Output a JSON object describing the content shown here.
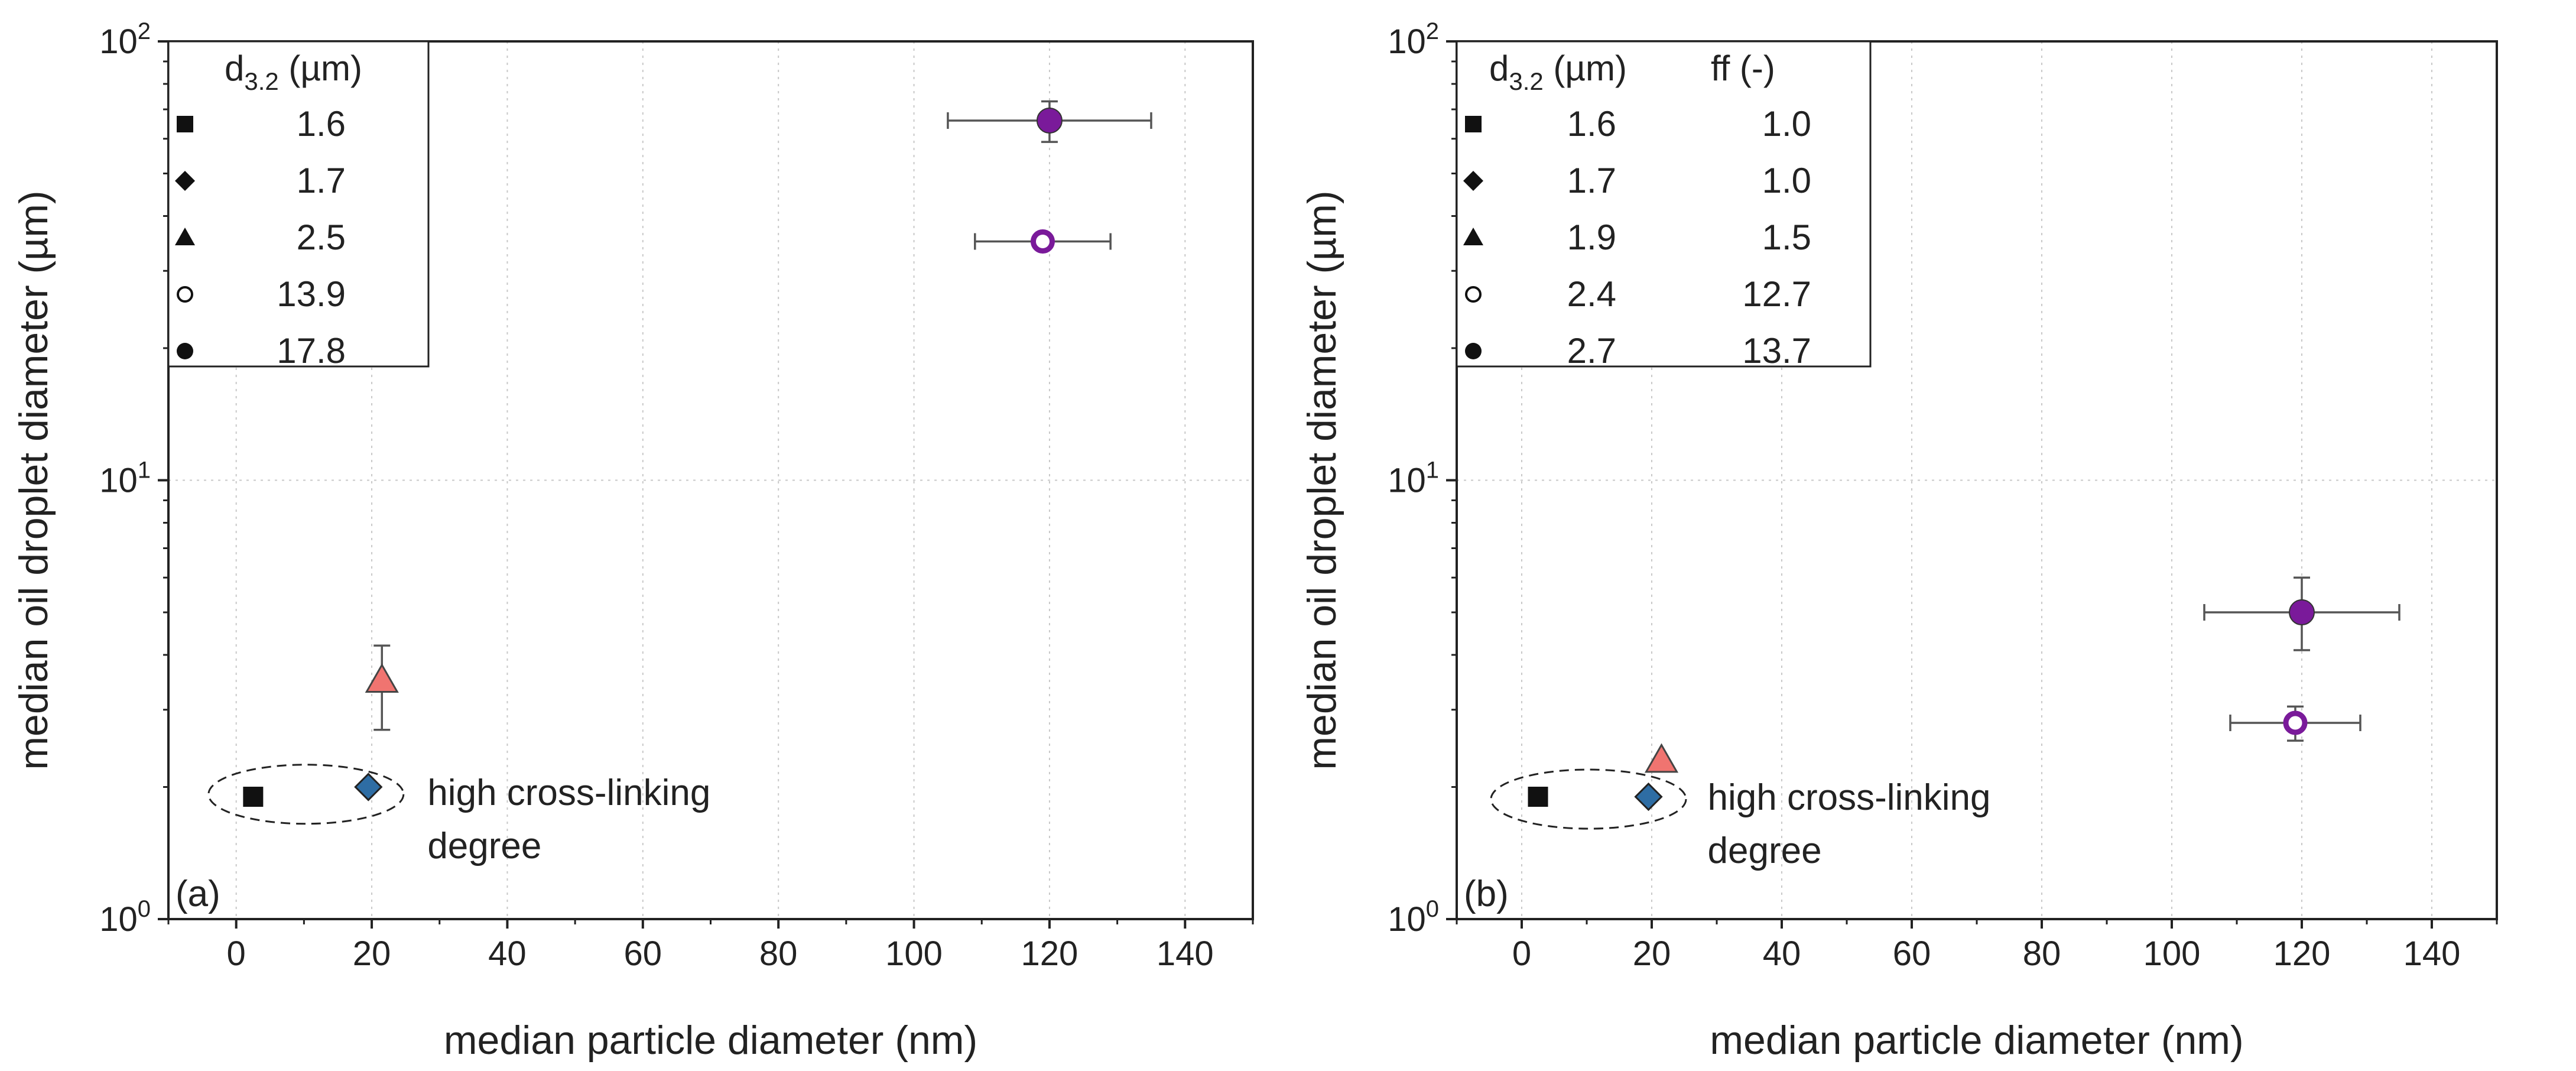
{
  "chart_data": [
    {
      "type": "scatter",
      "panel_label": "(a)",
      "xlabel": "median particle diameter (nm)",
      "ylabel": "median oil droplet diameter (µm)",
      "xlim": [
        -10,
        150
      ],
      "xticks": [
        0,
        20,
        40,
        60,
        80,
        100,
        120,
        140
      ],
      "yscale": "log",
      "ylim": [
        1,
        100
      ],
      "yticks": [
        1,
        10,
        100
      ],
      "ytick_labels": [
        {
          "base": "10",
          "exp": "0"
        },
        {
          "base": "10",
          "exp": "1"
        },
        {
          "base": "10",
          "exp": "2"
        }
      ],
      "grid": true,
      "legend_placement": "top-left",
      "legend_header": [
        {
          "main": "d",
          "sub": "3.2",
          "tail": " (µm)"
        }
      ],
      "series": [
        {
          "marker": "square",
          "fill": "#111111",
          "open": false,
          "legend": [
            "1.6"
          ],
          "x": 2.5,
          "y": 1.9,
          "xerr": null,
          "yerr": null
        },
        {
          "marker": "diamond",
          "fill": "#2e6da4",
          "open": false,
          "legend": [
            "1.7"
          ],
          "x": 19.5,
          "y": 2.0,
          "xerr": null,
          "yerr": null
        },
        {
          "marker": "triangle",
          "fill": "#f07470",
          "open": false,
          "legend": [
            "2.5"
          ],
          "x": 21.5,
          "y": 3.5,
          "xerr": null,
          "yerr": [
            2.7,
            4.2
          ]
        },
        {
          "marker": "circle",
          "fill": "#ffffff",
          "open": true,
          "legend": [
            "13.9"
          ],
          "x": 119,
          "y": 35,
          "xerr": [
            109,
            129
          ],
          "yerr": null
        },
        {
          "marker": "circle",
          "fill": "#7a1a9a",
          "open": false,
          "legend": [
            "17.8"
          ],
          "x": 120,
          "y": 66,
          "xerr": [
            105,
            135
          ],
          "yerr": [
            59,
            73
          ]
        }
      ],
      "annotation": {
        "lines": [
          "high cross-linking",
          "degree"
        ],
        "encircles": "square and diamond points"
      }
    },
    {
      "type": "scatter",
      "panel_label": "(b)",
      "xlabel": "median particle diameter (nm)",
      "ylabel": "median oil droplet diameter (µm)",
      "xlim": [
        -10,
        150
      ],
      "xticks": [
        0,
        20,
        40,
        60,
        80,
        100,
        120,
        140
      ],
      "yscale": "log",
      "ylim": [
        1,
        100
      ],
      "yticks": [
        1,
        10,
        100
      ],
      "ytick_labels": [
        {
          "base": "10",
          "exp": "0"
        },
        {
          "base": "10",
          "exp": "1"
        },
        {
          "base": "10",
          "exp": "2"
        }
      ],
      "grid": true,
      "legend_placement": "top-left",
      "legend_header": [
        {
          "main": "d",
          "sub": "3.2",
          "tail": " (µm)"
        },
        {
          "main": "ff (-)",
          "sub": "",
          "tail": ""
        }
      ],
      "series": [
        {
          "marker": "square",
          "fill": "#111111",
          "open": false,
          "legend": [
            "1.6",
            "1.0"
          ],
          "x": 2.5,
          "y": 1.9,
          "xerr": null,
          "yerr": null
        },
        {
          "marker": "diamond",
          "fill": "#2e6da4",
          "open": false,
          "legend": [
            "1.7",
            "1.0"
          ],
          "x": 19.5,
          "y": 1.9,
          "xerr": null,
          "yerr": null
        },
        {
          "marker": "triangle",
          "fill": "#f07470",
          "open": false,
          "legend": [
            "1.9",
            "1.5"
          ],
          "x": 21.5,
          "y": 2.3,
          "xerr": null,
          "yerr": null
        },
        {
          "marker": "circle",
          "fill": "#ffffff",
          "open": true,
          "legend": [
            "2.4",
            "12.7"
          ],
          "x": 119,
          "y": 2.8,
          "xerr": [
            109,
            129
          ],
          "yerr": [
            2.55,
            3.05
          ]
        },
        {
          "marker": "circle",
          "fill": "#7a1a9a",
          "open": false,
          "legend": [
            "2.7",
            "13.7"
          ],
          "x": 120,
          "y": 5.0,
          "xerr": [
            105,
            135
          ],
          "yerr": [
            4.1,
            6.0
          ]
        }
      ],
      "annotation": {
        "lines": [
          "high cross-linking",
          "degree"
        ],
        "encircles": "square and diamond points"
      }
    }
  ],
  "colors": {
    "open_circle_edge": "#7a1a9a",
    "errorbar": "#555555",
    "grid": "#c8c8c8"
  }
}
